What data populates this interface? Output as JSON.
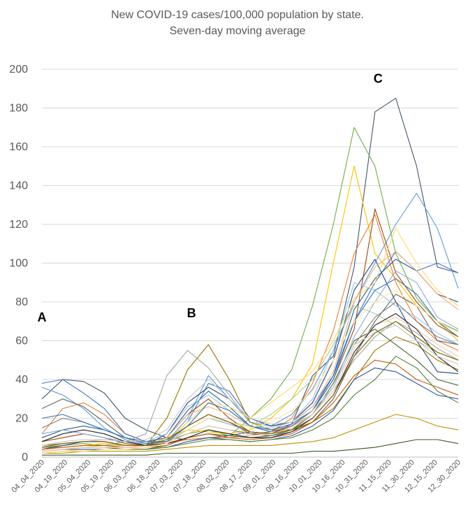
{
  "chart_data": {
    "type": "line",
    "title": "New COVID-19 cases/100,000 population by state.",
    "subtitle": "Seven-day moving average",
    "xlabel": "",
    "ylabel": "",
    "ylim": [
      0,
      200
    ],
    "yticks": [
      0,
      20,
      40,
      60,
      80,
      100,
      120,
      140,
      160,
      180,
      200
    ],
    "xticks": [
      "04_04_2020",
      "04_19_2020",
      "05_04_2020",
      "05_19_2020",
      "06_03_2020",
      "06_18_2020",
      "07_03_2020",
      "07_18_2020",
      "08_02_2020",
      "08_17_2020",
      "09_01_2020",
      "09_16_2020",
      "10_01_2020",
      "10_16_2020",
      "10_31_2020",
      "11_15_2020",
      "11_30_2020",
      "12_15_2020",
      "12_30_2020"
    ],
    "grid": "horizontal",
    "legend": "none",
    "annotations": [
      {
        "text": "A",
        "x": "04_04_2020",
        "y": 70
      },
      {
        "text": "B",
        "x": "07_10_2020",
        "y": 72
      },
      {
        "text": "C",
        "x": "11_08_2020",
        "y": 193
      }
    ],
    "series": [
      {
        "color": "#44546a",
        "values": [
          30,
          40,
          39,
          33,
          20,
          14,
          10,
          9,
          10,
          11,
          13,
          12,
          17,
          42,
          52,
          98,
          178,
          185,
          150,
          98,
          95
        ]
      },
      {
        "color": "#70ad47",
        "values": [
          5,
          6,
          7,
          6,
          5,
          5,
          8,
          12,
          14,
          11,
          20,
          30,
          45,
          78,
          120,
          170,
          150,
          105,
          82,
          70,
          65
        ]
      },
      {
        "color": "#ffc000",
        "values": [
          4,
          5,
          6,
          7,
          6,
          6,
          10,
          14,
          13,
          12,
          14,
          20,
          30,
          48,
          100,
          150,
          105,
          92,
          78,
          70,
          60
        ]
      },
      {
        "color": "#ed7d31",
        "values": [
          12,
          25,
          28,
          22,
          12,
          8,
          7,
          9,
          10,
          10,
          11,
          13,
          20,
          38,
          65,
          105,
          125,
          90,
          70,
          60,
          55
        ]
      },
      {
        "color": "#5b9bd5",
        "values": [
          36,
          32,
          25,
          15,
          9,
          6,
          8,
          20,
          42,
          30,
          18,
          16,
          22,
          35,
          55,
          80,
          100,
          120,
          136,
          118,
          87
        ]
      },
      {
        "color": "#4472c4",
        "values": [
          38,
          40,
          33,
          25,
          12,
          8,
          8,
          18,
          38,
          34,
          20,
          16,
          18,
          26,
          42,
          70,
          90,
          106,
          96,
          100,
          95
        ]
      },
      {
        "color": "#a5a5a5",
        "values": [
          5,
          5,
          6,
          6,
          8,
          12,
          42,
          55,
          46,
          32,
          18,
          14,
          16,
          22,
          34,
          50,
          62,
          70,
          64,
          56,
          50
        ]
      },
      {
        "color": "#9e480e",
        "values": [
          8,
          10,
          12,
          10,
          7,
          6,
          10,
          22,
          30,
          20,
          13,
          12,
          16,
          24,
          40,
          66,
          128,
          95,
          80,
          68,
          62
        ]
      },
      {
        "color": "#997300",
        "values": [
          6,
          7,
          8,
          8,
          6,
          6,
          20,
          45,
          58,
          40,
          18,
          14,
          14,
          18,
          25,
          40,
          55,
          62,
          58,
          50,
          45
        ]
      },
      {
        "color": "#264478",
        "values": [
          4,
          6,
          8,
          8,
          6,
          6,
          12,
          28,
          36,
          30,
          20,
          16,
          18,
          28,
          50,
          86,
          102,
          80,
          60,
          44,
          43
        ]
      },
      {
        "color": "#43682b",
        "values": [
          3,
          4,
          5,
          5,
          4,
          4,
          6,
          10,
          12,
          11,
          10,
          11,
          14,
          22,
          38,
          60,
          66,
          58,
          50,
          40,
          37
        ]
      },
      {
        "color": "#636363",
        "values": [
          25,
          30,
          26,
          18,
          10,
          7,
          8,
          16,
          22,
          18,
          12,
          11,
          13,
          18,
          30,
          52,
          70,
          84,
          78,
          60,
          58
        ]
      },
      {
        "color": "#255e91",
        "values": [
          10,
          14,
          16,
          14,
          10,
          8,
          10,
          24,
          34,
          26,
          16,
          13,
          16,
          24,
          42,
          76,
          92,
          102,
          96,
          84,
          80
        ]
      },
      {
        "color": "#f4b183",
        "values": [
          3,
          4,
          5,
          5,
          5,
          6,
          10,
          22,
          26,
          22,
          16,
          15,
          18,
          26,
          44,
          80,
          98,
          106,
          96,
          84,
          76
        ]
      },
      {
        "color": "#9dc3e6",
        "values": [
          5,
          7,
          8,
          9,
          8,
          8,
          12,
          26,
          32,
          24,
          16,
          15,
          18,
          30,
          55,
          90,
          86,
          78,
          72,
          64,
          58
        ]
      },
      {
        "color": "#a9d18e",
        "values": [
          3,
          4,
          5,
          6,
          6,
          6,
          8,
          14,
          20,
          18,
          16,
          22,
          30,
          40,
          58,
          78,
          74,
          68,
          60,
          54,
          50
        ]
      },
      {
        "color": "#ffd966",
        "values": [
          2,
          3,
          4,
          4,
          4,
          5,
          8,
          18,
          28,
          26,
          20,
          28,
          36,
          44,
          60,
          82,
          90,
          118,
          100,
          86,
          78
        ]
      },
      {
        "color": "#7f7f7f",
        "values": [
          15,
          20,
          18,
          14,
          10,
          8,
          8,
          12,
          16,
          14,
          12,
          13,
          16,
          24,
          36,
          58,
          72,
          80,
          70,
          62,
          58
        ]
      },
      {
        "color": "#c55a11",
        "values": [
          4,
          5,
          6,
          6,
          5,
          5,
          6,
          10,
          12,
          10,
          9,
          10,
          12,
          18,
          28,
          42,
          50,
          48,
          40,
          36,
          32
        ]
      },
      {
        "color": "#2f5597",
        "values": [
          3,
          4,
          4,
          4,
          4,
          4,
          5,
          8,
          10,
          9,
          8,
          9,
          11,
          16,
          24,
          40,
          46,
          44,
          38,
          32,
          30
        ]
      },
      {
        "color": "#548235",
        "values": [
          2,
          3,
          3,
          4,
          4,
          4,
          5,
          7,
          9,
          9,
          8,
          9,
          10,
          14,
          20,
          32,
          40,
          52,
          46,
          34,
          28
        ]
      },
      {
        "color": "#bf9000",
        "values": [
          2,
          2,
          3,
          3,
          3,
          3,
          4,
          5,
          6,
          6,
          6,
          6,
          7,
          8,
          10,
          14,
          18,
          22,
          20,
          16,
          14
        ]
      },
      {
        "color": "#385723",
        "values": [
          1,
          1,
          1,
          1,
          1,
          1,
          2,
          2,
          2,
          2,
          2,
          2,
          2,
          3,
          3,
          4,
          5,
          7,
          9,
          9,
          7
        ]
      },
      {
        "color": "#8faadc",
        "values": [
          12,
          14,
          12,
          10,
          8,
          7,
          8,
          14,
          20,
          17,
          13,
          12,
          15,
          22,
          36,
          62,
          80,
          96,
          90,
          72,
          66
        ]
      },
      {
        "color": "#f8cbad",
        "values": [
          3,
          4,
          5,
          5,
          5,
          5,
          7,
          12,
          16,
          14,
          11,
          12,
          15,
          22,
          34,
          56,
          68,
          72,
          66,
          58,
          52
        ]
      },
      {
        "color": "#262626",
        "values": [
          8,
          12,
          14,
          12,
          8,
          6,
          7,
          10,
          14,
          12,
          10,
          10,
          13,
          20,
          32,
          54,
          68,
          74,
          66,
          52,
          44
        ]
      },
      {
        "color": "#2e75b6",
        "values": [
          20,
          22,
          18,
          14,
          10,
          7,
          8,
          16,
          28,
          24,
          16,
          14,
          17,
          24,
          40,
          70,
          86,
          92,
          84,
          70,
          62
        ]
      },
      {
        "color": "#ffe699",
        "values": [
          2,
          3,
          3,
          4,
          4,
          5,
          7,
          14,
          20,
          18,
          15,
          18,
          24,
          34,
          50,
          70,
          80,
          86,
          78,
          70,
          64
        ]
      },
      {
        "color": "#c9c9c9",
        "values": [
          6,
          8,
          9,
          9,
          8,
          9,
          14,
          30,
          40,
          30,
          20,
          17,
          18,
          24,
          36,
          58,
          64,
          68,
          60,
          52,
          48
        ]
      },
      {
        "color": "#806000",
        "values": [
          5,
          7,
          8,
          8,
          6,
          6,
          9,
          16,
          22,
          18,
          13,
          12,
          14,
          20,
          32,
          52,
          64,
          70,
          62,
          54,
          50
        ]
      }
    ]
  }
}
